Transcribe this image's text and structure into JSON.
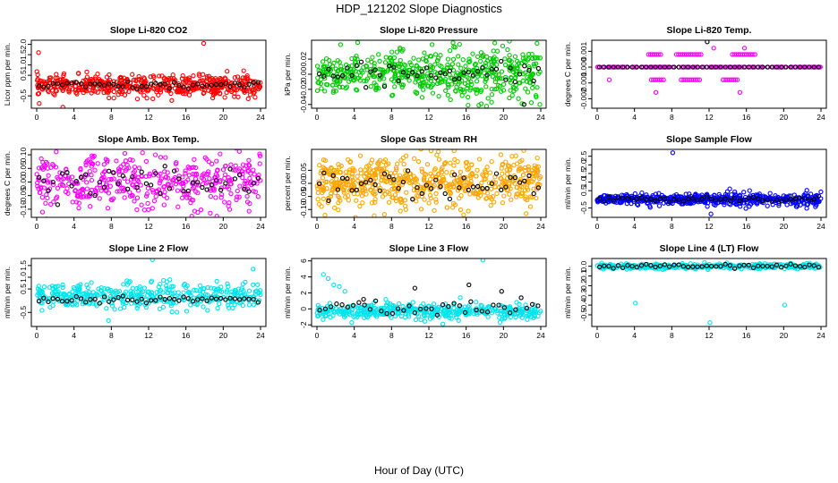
{
  "figure": {
    "title": "HDP_121202  Slope Diagnostics",
    "xlabel": "Hour of Day (UTC)"
  },
  "colors": {
    "red": "#ff0000",
    "green": "#00cc00",
    "magenta": "#ff00ff",
    "orange": "#ffa500",
    "blue": "#0000ff",
    "cyan": "#00e5ee",
    "black": "#000000"
  },
  "chart_data": [
    {
      "type": "scatter",
      "title": "Slope Li-820 CO2",
      "ylabel": "Licor ppm per min.",
      "xlim": [
        0,
        24
      ],
      "ylim": [
        -1.1,
        2.2
      ],
      "xticks": [
        0,
        4,
        8,
        12,
        16,
        20,
        24
      ],
      "yticks": [
        -0.5,
        0.5,
        1.0,
        1.5,
        2.0
      ],
      "ytick_labels": [
        "-0.5",
        "0.5",
        "1.0",
        "1.5",
        "2.0"
      ],
      "series": [
        {
          "name": "all",
          "color": "red",
          "n": 520,
          "center": 0.0,
          "spread": 0.25
        },
        {
          "name": "hourly",
          "color": "black",
          "n": 48,
          "center": 0.0,
          "spread": 0.1
        }
      ],
      "outliers": [
        {
          "x": 0.2,
          "y": 1.6,
          "color": "red"
        },
        {
          "x": 17.9,
          "y": 2.05,
          "color": "red"
        },
        {
          "x": 2.8,
          "y": -1.05,
          "color": "red"
        },
        {
          "x": 10.8,
          "y": -0.65,
          "color": "red"
        }
      ]
    },
    {
      "type": "scatter",
      "title": "Slope Li-820 Pressure",
      "ylabel": "kPa per min.",
      "xlim": [
        0,
        24
      ],
      "ylim": [
        -0.045,
        0.045
      ],
      "xticks": [
        0,
        4,
        8,
        12,
        16,
        20,
        24
      ],
      "yticks": [
        -0.04,
        -0.02,
        0.0,
        0.02
      ],
      "ytick_labels": [
        "-0.04",
        "-0.02",
        "0.00",
        "0.02"
      ],
      "series": [
        {
          "name": "all",
          "color": "green",
          "n": 560,
          "center": 0.0,
          "spread": 0.012,
          "growth": 1.6
        },
        {
          "name": "hourly",
          "color": "black",
          "n": 48,
          "center": 0.0,
          "spread": 0.008
        }
      ],
      "outliers": [
        {
          "x": 23.6,
          "y": 0.041,
          "color": "green"
        },
        {
          "x": 22.2,
          "y": -0.04,
          "color": "black"
        },
        {
          "x": 16.2,
          "y": -0.041,
          "color": "green"
        }
      ]
    },
    {
      "type": "scatter",
      "title": "Slope Li-820 Temp.",
      "ylabel": "degrees C per min.",
      "xlim": [
        0,
        24
      ],
      "ylim": [
        -0.0026,
        0.0017
      ],
      "xticks": [
        0,
        4,
        8,
        12,
        16,
        20,
        24
      ],
      "yticks": [
        -0.002,
        -0.001,
        0.0,
        0.001
      ],
      "ytick_labels": [
        "-0.002",
        "-0.001",
        "0.000",
        "0.001"
      ],
      "series": [
        {
          "name": "all",
          "color": "magenta",
          "n": 180,
          "center": 0.0,
          "spread": 0.0,
          "levels": [
            0.0
          ]
        },
        {
          "name": "hourly",
          "color": "black",
          "n": 48,
          "center": 0.0,
          "spread": 0.0,
          "levels": [
            0.0
          ]
        }
      ],
      "level_rows": [
        {
          "y": 0.0008,
          "color": "magenta",
          "segments": [
            [
              5.5,
              7
            ],
            [
              8.5,
              11.2
            ],
            [
              14.5,
              17
            ]
          ]
        },
        {
          "y": -0.0008,
          "color": "magenta",
          "segments": [
            [
              5.8,
              7.3
            ],
            [
              9,
              11
            ],
            [
              13.5,
              15.2
            ]
          ]
        },
        {
          "y": -0.0016,
          "color": "magenta",
          "segments": [
            [
              6.3,
              6.4
            ],
            [
              15.3,
              15.4
            ]
          ]
        },
        {
          "y": 0.0016,
          "color": "black",
          "segments": [
            [
              11.8,
              11.9
            ]
          ]
        },
        {
          "y": 0.0012,
          "color": "magenta",
          "segments": [
            [
              12.5,
              12.6
            ],
            [
              15.8,
              15.9
            ]
          ]
        },
        {
          "y": -0.0008,
          "color": "magenta",
          "segments": [
            [
              1.3,
              1.4
            ]
          ]
        }
      ]
    },
    {
      "type": "scatter",
      "title": "Slope Amb. Box Temp.",
      "ylabel": "degrees C per min.",
      "xlim": [
        0,
        24
      ],
      "ylim": [
        -0.13,
        0.12
      ],
      "xticks": [
        0,
        4,
        8,
        12,
        16,
        20,
        24
      ],
      "yticks": [
        -0.1,
        -0.05,
        0.0,
        0.05,
        0.1
      ],
      "ytick_labels": [
        "-0.10",
        "-0.05",
        "0.00",
        "0.05",
        "0.10"
      ],
      "series": [
        {
          "name": "all",
          "color": "magenta",
          "n": 430,
          "center": 0.0,
          "spread": 0.048
        },
        {
          "name": "hourly",
          "color": "black",
          "n": 48,
          "center": 0.0,
          "spread": 0.035
        }
      ],
      "outliers": []
    },
    {
      "type": "scatter",
      "title": "Slope Gas Stream RH",
      "ylabel": "percent per min.",
      "xlim": [
        0,
        24
      ],
      "ylim": [
        -0.13,
        0.13
      ],
      "xticks": [
        0,
        4,
        8,
        12,
        16,
        20,
        24
      ],
      "yticks": [
        -0.1,
        -0.05,
        0.0,
        0.05
      ],
      "ytick_labels": [
        "-0.10",
        "-0.05",
        "0.00",
        "0.05"
      ],
      "series": [
        {
          "name": "all",
          "color": "orange",
          "n": 620,
          "center": 0.0,
          "spread": 0.05
        },
        {
          "name": "hourly",
          "color": "black",
          "n": 48,
          "center": 0.0,
          "spread": 0.035
        }
      ],
      "outliers": []
    },
    {
      "type": "scatter",
      "title": "Slope Sample Flow",
      "ylabel": "ml/min per min.",
      "xlim": [
        0,
        24
      ],
      "ylim": [
        -1.05,
        2.9
      ],
      "xticks": [
        0,
        4,
        8,
        12,
        16,
        20,
        24
      ],
      "yticks": [
        -0.5,
        0.5,
        1.0,
        1.5,
        2.0,
        2.5
      ],
      "ytick_labels": [
        "-0.5",
        "0.5",
        "1.0",
        "1.5",
        "2.0",
        "2.5"
      ],
      "series": [
        {
          "name": "all",
          "color": "blue",
          "n": 560,
          "center": 0.0,
          "spread": 0.12,
          "growth": 1.7
        },
        {
          "name": "hourly",
          "color": "black",
          "n": 48,
          "center": 0.0,
          "spread": 0.08
        }
      ],
      "outliers": [
        {
          "x": 8.1,
          "y": 2.7,
          "color": "blue"
        },
        {
          "x": 12.2,
          "y": -0.85,
          "color": "blue"
        }
      ]
    },
    {
      "type": "scatter",
      "title": "Slope Line 2 Flow",
      "ylabel": "ml/min per min.",
      "xlim": [
        0,
        24
      ],
      "ylim": [
        -1.1,
        1.8
      ],
      "xticks": [
        0,
        4,
        8,
        12,
        16,
        20,
        24
      ],
      "yticks": [
        -0.5,
        0.5,
        1.0,
        1.5
      ],
      "ytick_labels": [
        "-0.5",
        "0.5",
        "1.0",
        "1.5"
      ],
      "series": [
        {
          "name": "all",
          "color": "cyan",
          "n": 420,
          "center": 0.2,
          "spread": 0.28
        },
        {
          "name": "hourly",
          "color": "black",
          "n": 48,
          "center": 0.05,
          "spread": 0.08
        }
      ],
      "outliers": [
        {
          "x": 12.4,
          "y": 1.75,
          "color": "cyan"
        },
        {
          "x": 7.7,
          "y": -0.85,
          "color": "cyan"
        },
        {
          "x": 23.2,
          "y": 1.35,
          "color": "cyan"
        }
      ]
    },
    {
      "type": "scatter",
      "title": "Slope Line 3 Flow",
      "ylabel": "ml/min per min.",
      "xlim": [
        0,
        24
      ],
      "ylim": [
        -2.2,
        6.3
      ],
      "xticks": [
        0,
        4,
        8,
        12,
        16,
        20,
        24
      ],
      "yticks": [
        -2,
        0,
        2,
        4,
        6
      ],
      "ytick_labels": [
        "-2",
        "0",
        "2",
        "4",
        "6"
      ],
      "series": [
        {
          "name": "all",
          "color": "cyan",
          "n": 460,
          "center": -0.3,
          "spread": 0.45
        },
        {
          "name": "hourly",
          "color": "black",
          "n": 40,
          "center": 0.1,
          "spread": 0.5
        }
      ],
      "outliers": [
        {
          "x": 17.8,
          "y": 6.1,
          "color": "cyan"
        },
        {
          "x": 0.7,
          "y": 4.3,
          "color": "cyan"
        },
        {
          "x": 1.2,
          "y": 3.8,
          "color": "cyan"
        },
        {
          "x": 1.8,
          "y": 3.0,
          "color": "cyan"
        },
        {
          "x": 2.4,
          "y": 2.8,
          "color": "cyan"
        },
        {
          "x": 3.0,
          "y": 2.2,
          "color": "cyan"
        },
        {
          "x": 10.5,
          "y": 2.6,
          "color": "black"
        },
        {
          "x": 16.3,
          "y": 3.0,
          "color": "black"
        },
        {
          "x": 19.8,
          "y": 2.2,
          "color": "black"
        },
        {
          "x": 5.0,
          "y": 1.2,
          "color": "black"
        },
        {
          "x": 13.5,
          "y": -1.9,
          "color": "cyan"
        }
      ]
    },
    {
      "type": "scatter",
      "title": "Slope Line 4 (LT) Flow",
      "ylabel": "ml/min per min.",
      "xlim": [
        0,
        24
      ],
      "ylim": [
        -0.62,
        0.08
      ],
      "xticks": [
        0,
        4,
        8,
        12,
        16,
        20,
        24
      ],
      "yticks": [
        -0.5,
        -0.4,
        -0.3,
        -0.2,
        -0.1,
        0.0
      ],
      "ytick_labels": [
        "-0.5",
        "-0.4",
        "-0.3",
        "-0.2",
        "-0.1",
        "0.0"
      ],
      "series": [
        {
          "name": "all",
          "color": "cyan",
          "n": 420,
          "center": 0.0,
          "spread": 0.012
        },
        {
          "name": "hourly",
          "color": "black",
          "n": 48,
          "center": 0.0,
          "spread": 0.01
        }
      ],
      "outliers": [
        {
          "x": 4.1,
          "y": -0.38,
          "color": "cyan"
        },
        {
          "x": 12.1,
          "y": -0.58,
          "color": "cyan"
        },
        {
          "x": 20.1,
          "y": -0.4,
          "color": "cyan"
        }
      ]
    }
  ]
}
